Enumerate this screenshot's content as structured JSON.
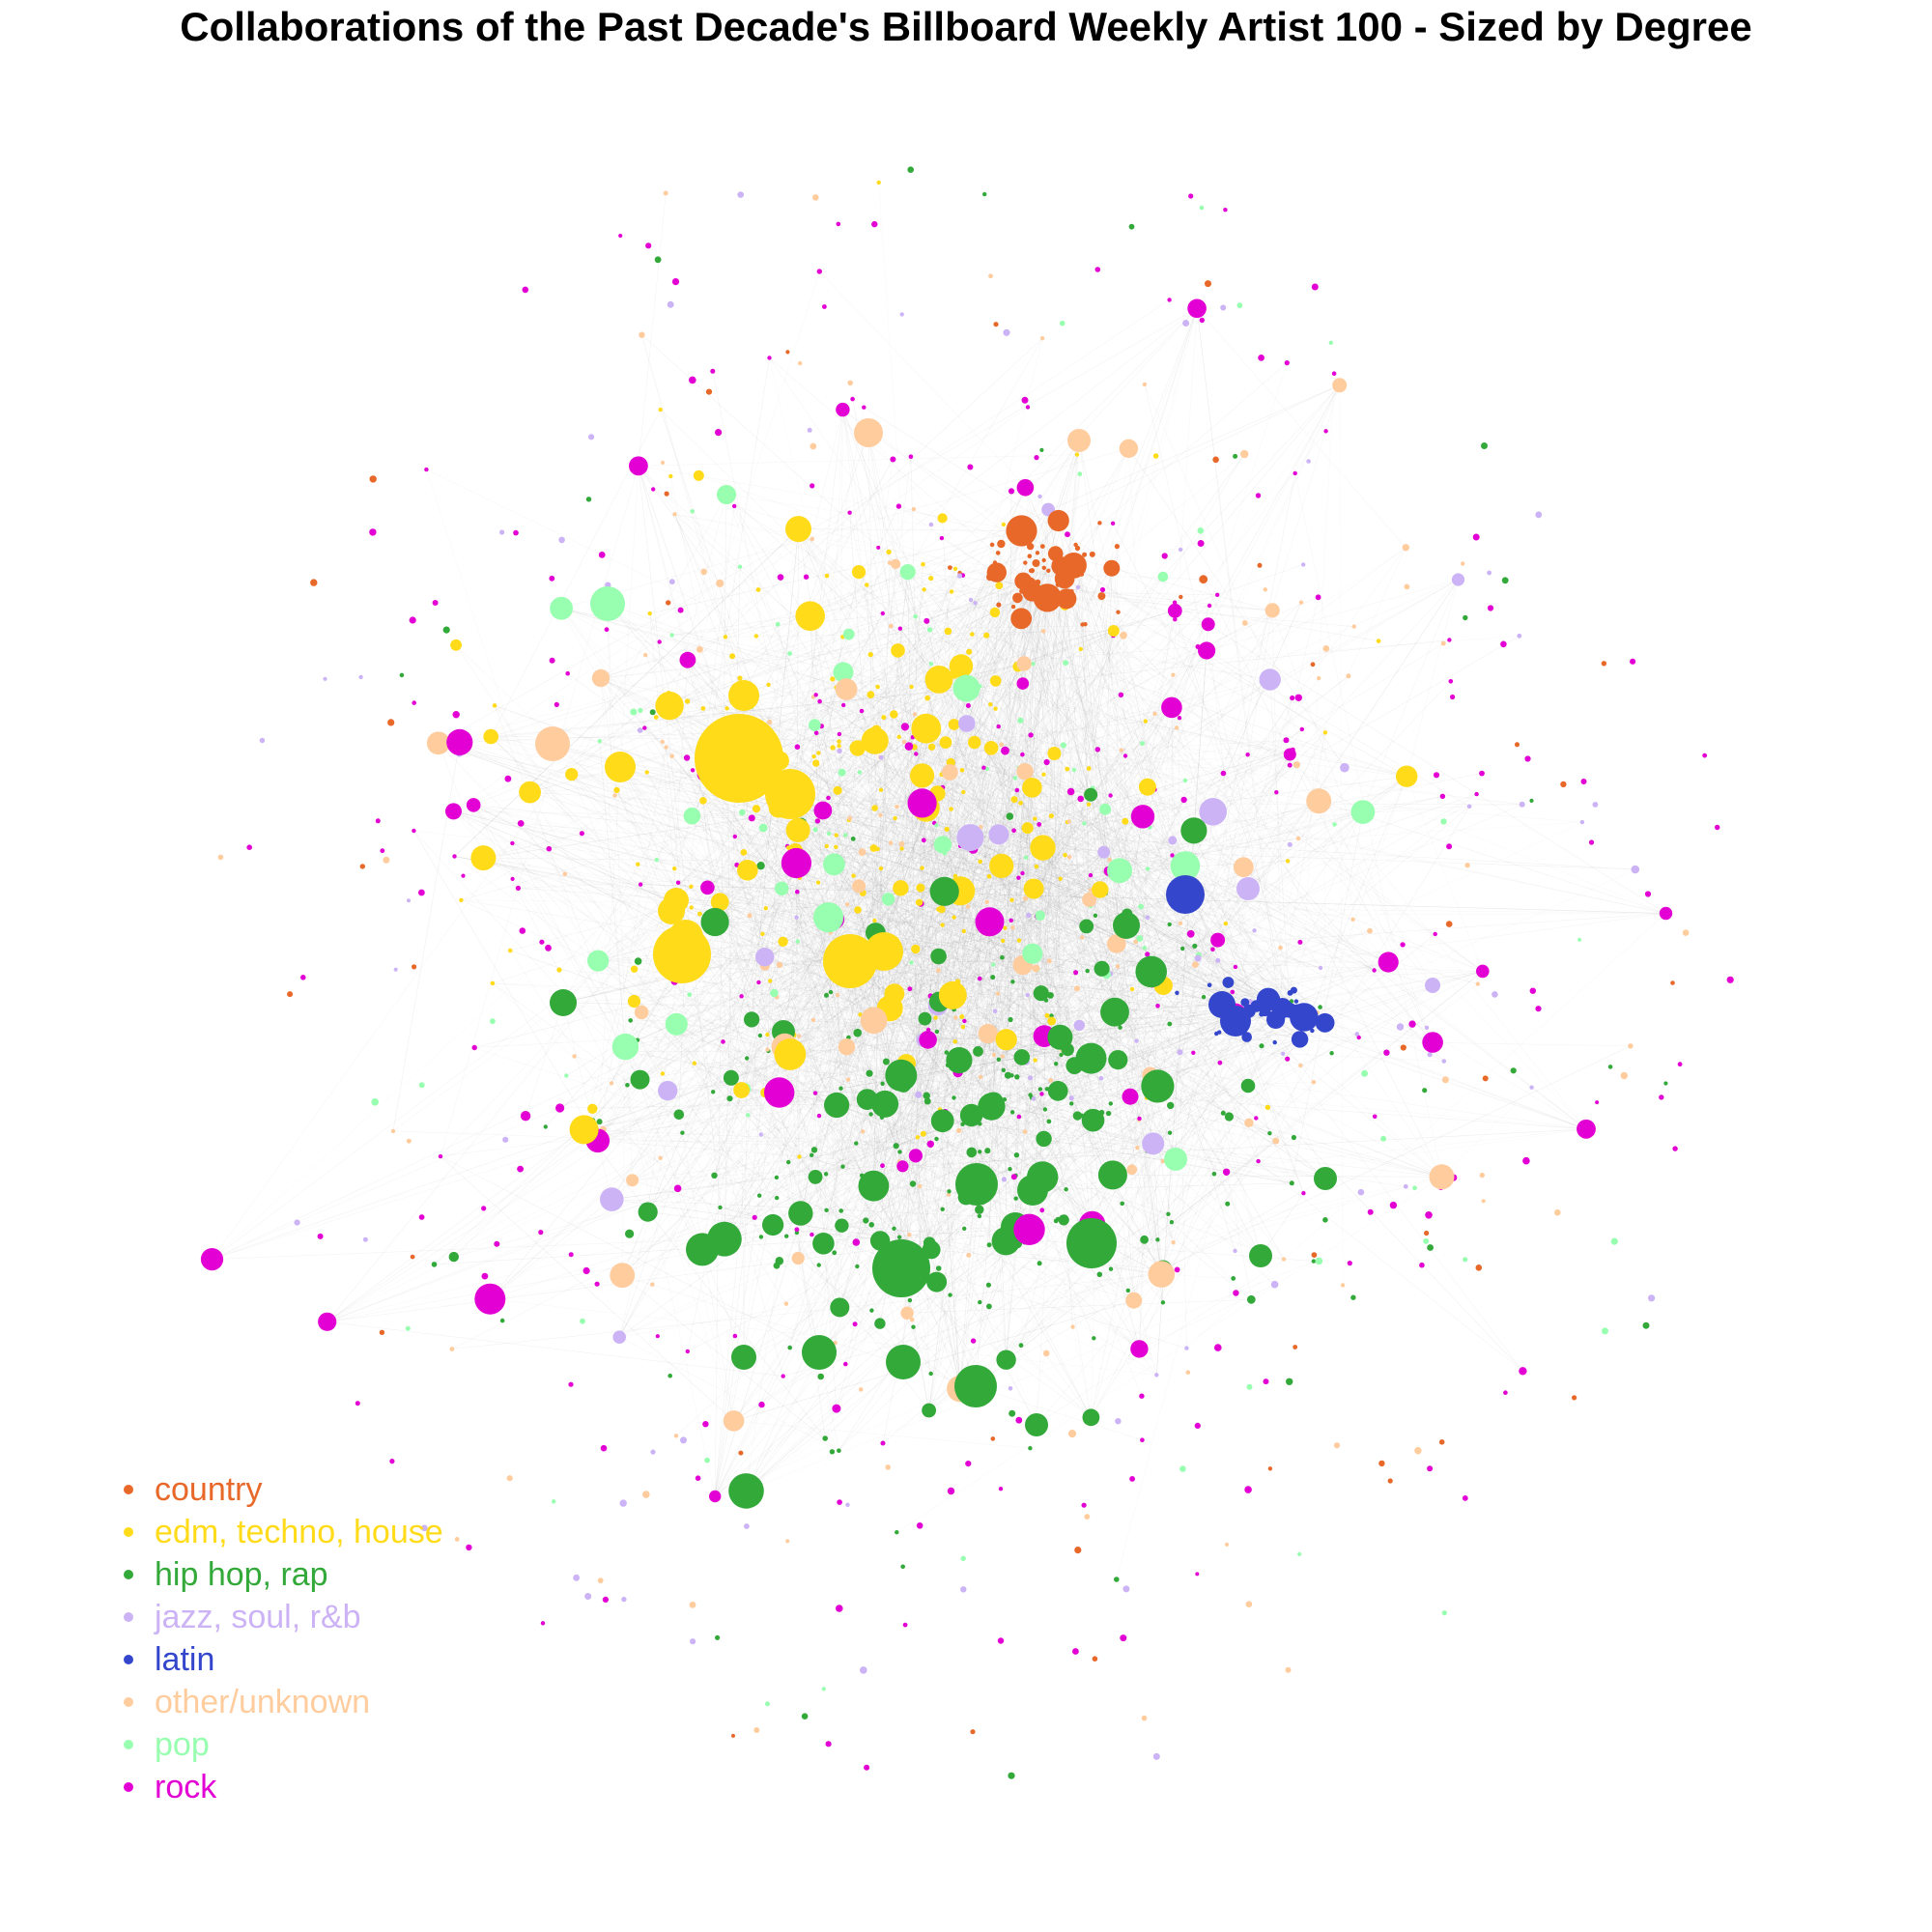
{
  "title": "Collaborations of the Past Decade's Billboard Weekly Artist 100 - Sized by Degree",
  "legend": [
    {
      "label": "country",
      "color": "#E8682A"
    },
    {
      "label": "edm, techno, house",
      "color": "#FFDB1A"
    },
    {
      "label": "hip hop, rap",
      "color": "#33A93A"
    },
    {
      "label": "jazz, soul, r&b",
      "color": "#CCB3F5"
    },
    {
      "label": "latin",
      "color": "#3346CC"
    },
    {
      "label": "other/unknown",
      "color": "#FFCC9E"
    },
    {
      "label": "pop",
      "color": "#99FFB0"
    },
    {
      "label": "rock",
      "color": "#E300D4"
    }
  ],
  "edge_color": "#9a9a9a"
}
